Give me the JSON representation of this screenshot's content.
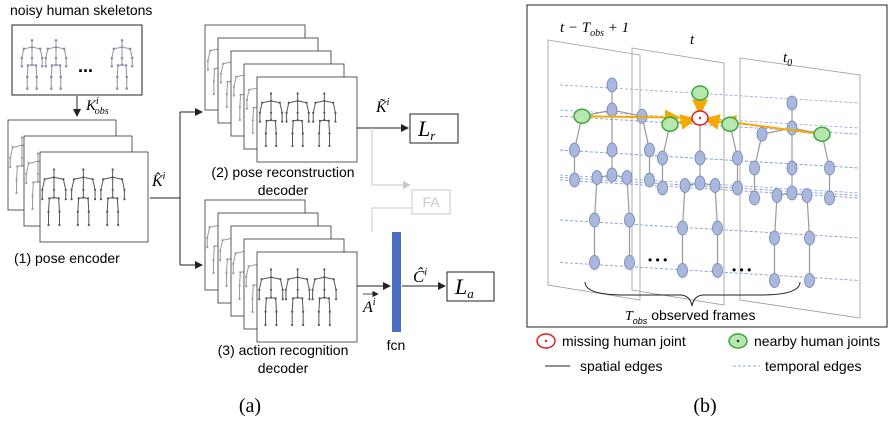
{
  "panel_a": {
    "input_label": "noisy human skeletons",
    "ellipsis": "...",
    "k_obs": {
      "base": "K",
      "sup": "i",
      "sub": "obs"
    },
    "encoder": "(1) pose encoder",
    "k_hat": {
      "base": "K̂",
      "sup": "i"
    },
    "recon_decoder": [
      "(2) pose reconstruction",
      "decoder"
    ],
    "k_tilde": {
      "base": "K̃",
      "sup": "i"
    },
    "loss_r": {
      "base": "L",
      "sub": "r"
    },
    "fa": "FA",
    "action_decoder": [
      "(3) action recognition",
      "decoder"
    ],
    "a": {
      "base": "A",
      "sup": "i"
    },
    "c_hat": {
      "base": "Ĉ",
      "sup": "i"
    },
    "loss_a": {
      "base": "L",
      "sub": "a"
    },
    "fcn": "fcn",
    "caption": "(a)"
  },
  "panel_b": {
    "frame_start": {
      "pre": "t − T",
      "sub": "obs",
      "post": " + 1"
    },
    "frame_t": "t",
    "frame_t0": {
      "base": "t",
      "sub": "0"
    },
    "dots": [
      "• • •",
      "• • •"
    ],
    "span": {
      "base": "T",
      "sub": "obs",
      "rest": " observed frames"
    },
    "legend": {
      "missing": "missing human joint",
      "nearby": "nearby human joints",
      "spatial": "spatial edges",
      "temporal": "temporal edges"
    },
    "caption": "(b)"
  }
}
